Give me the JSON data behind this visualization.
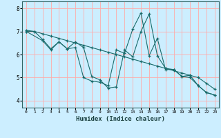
{
  "xlabel": "Humidex (Indice chaleur)",
  "bg_color": "#cceeff",
  "grid_color": "#ffaaaa",
  "line_color": "#1a6b6b",
  "xlim": [
    -0.5,
    23.5
  ],
  "ylim": [
    3.7,
    8.3
  ],
  "xticks": [
    0,
    1,
    2,
    3,
    4,
    5,
    6,
    7,
    8,
    9,
    10,
    11,
    12,
    13,
    14,
    15,
    16,
    17,
    18,
    19,
    20,
    21,
    22,
    23
  ],
  "yticks": [
    4,
    5,
    6,
    7,
    8
  ],
  "series1_x": [
    0,
    1,
    2,
    3,
    4,
    5,
    6,
    7,
    8,
    9,
    10,
    11,
    12,
    13,
    14,
    15,
    16,
    17,
    18,
    19,
    20,
    21,
    22,
    23
  ],
  "series1_y": [
    7.0,
    7.0,
    6.65,
    6.25,
    6.55,
    6.25,
    6.3,
    5.0,
    4.85,
    4.8,
    4.65,
    6.2,
    6.05,
    7.1,
    7.8,
    5.95,
    6.7,
    5.35,
    5.35,
    5.05,
    5.0,
    4.65,
    4.35,
    4.25
  ],
  "series2_x": [
    0,
    1,
    2,
    3,
    4,
    5,
    6,
    7,
    8,
    9,
    10,
    11,
    12,
    13,
    14,
    15,
    16,
    17,
    18,
    19,
    20,
    21,
    22,
    23
  ],
  "series2_y": [
    7.05,
    7.0,
    6.9,
    6.8,
    6.7,
    6.6,
    6.5,
    6.4,
    6.3,
    6.2,
    6.1,
    6.0,
    5.9,
    5.8,
    5.7,
    5.6,
    5.5,
    5.4,
    5.3,
    5.2,
    5.1,
    5.0,
    4.75,
    4.5
  ],
  "series3_x": [
    0,
    2,
    3,
    4,
    5,
    6,
    7,
    8,
    9,
    10,
    11,
    12,
    13,
    14,
    15,
    16,
    17,
    18,
    19,
    20,
    21,
    22,
    23
  ],
  "series3_y": [
    7.0,
    6.6,
    6.2,
    6.55,
    6.25,
    6.55,
    6.3,
    5.05,
    4.9,
    4.55,
    4.6,
    6.2,
    5.9,
    7.0,
    7.75,
    5.95,
    5.4,
    5.35,
    5.05,
    5.1,
    4.65,
    4.35,
    4.25
  ]
}
